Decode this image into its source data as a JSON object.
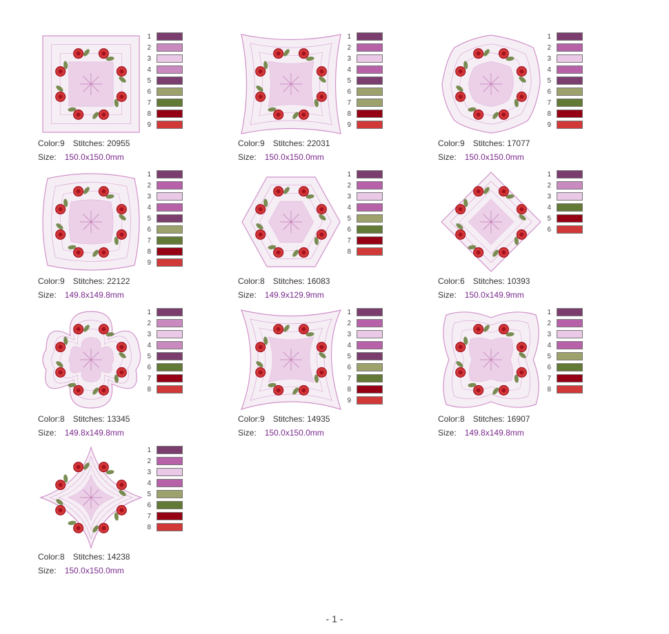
{
  "labels": {
    "color": "Color:",
    "stitches": "Stitches:",
    "size": "Size:"
  },
  "palette": {
    "plum": "#7a3d6e",
    "orchid": "#b762a8",
    "lightpink": "#e9c9e6",
    "sage": "#9da26c",
    "olive": "#627a35",
    "darkred": "#960014",
    "red": "#d13838",
    "mauve": "#d091c9"
  },
  "designs": [
    {
      "color_count": "9",
      "stitches": "20955",
      "size": "150.0x150.0mm",
      "shape": "square",
      "swatches": [
        "#7a3d6e",
        "#c98ac0",
        "#e9c9e6",
        "#c98ac0",
        "#7a3d6e",
        "#9da26c",
        "#627a35",
        "#960014",
        "#d13838"
      ]
    },
    {
      "color_count": "9",
      "stitches": "22031",
      "size": "150.0x150.0mm",
      "shape": "square-star",
      "swatches": [
        "#7a3d6e",
        "#b762a8",
        "#e9c9e6",
        "#b762a8",
        "#7a3d6e",
        "#9da26c",
        "#9da26c",
        "#960014",
        "#d13838"
      ]
    },
    {
      "color_count": "9",
      "stitches": "17077",
      "size": "150.0x150.0mm",
      "shape": "octagon",
      "swatches": [
        "#7a3d6e",
        "#b762a8",
        "#e9c9e6",
        "#b762a8",
        "#7a3d6e",
        "#9da26c",
        "#627a35",
        "#960014",
        "#d13838"
      ]
    },
    {
      "color_count": "9",
      "stitches": "22122",
      "size": "149.8x149.8mm",
      "shape": "rounded-square",
      "swatches": [
        "#7a3d6e",
        "#b762a8",
        "#e9c9e6",
        "#b762a8",
        "#7a3d6e",
        "#9da26c",
        "#627a35",
        "#960014",
        "#d13838"
      ]
    },
    {
      "color_count": "8",
      "stitches": "16083",
      "size": "149.9x129.9mm",
      "shape": "hexagon",
      "swatches": [
        "#7a3d6e",
        "#b762a8",
        "#e9c9e6",
        "#b762a8",
        "#9da26c",
        "#627a35",
        "#960014",
        "#d13838"
      ]
    },
    {
      "color_count": "6",
      "stitches": "10393",
      "size": "150.0x149.9mm",
      "shape": "diamond",
      "swatches": [
        "#7a3d6e",
        "#c98ac0",
        "#e9c9e6",
        "#627a35",
        "#960014",
        "#d13838"
      ]
    },
    {
      "color_count": "8",
      "stitches": "13345",
      "size": "149.8x149.8mm",
      "shape": "flower",
      "swatches": [
        "#7a3d6e",
        "#c98ac0",
        "#e9c9e6",
        "#c98ac0",
        "#7a3d6e",
        "#627a35",
        "#960014",
        "#d13838"
      ]
    },
    {
      "color_count": "9",
      "stitches": "14935",
      "size": "150.0x150.0mm",
      "shape": "pinwheel",
      "swatches": [
        "#7a3d6e",
        "#b762a8",
        "#e9c9e6",
        "#b762a8",
        "#7a3d6e",
        "#9da26c",
        "#627a35",
        "#960014",
        "#d13838"
      ]
    },
    {
      "color_count": "8",
      "stitches": "16907",
      "size": "149.8x149.8mm",
      "shape": "wavy-square",
      "swatches": [
        "#7a3d6e",
        "#b762a8",
        "#e9c9e6",
        "#b762a8",
        "#9da26c",
        "#627a35",
        "#960014",
        "#d13838"
      ]
    },
    {
      "color_count": "8",
      "stitches": "14238",
      "size": "150.0x150.0mm",
      "shape": "four-point-star",
      "swatches": [
        "#7a3d6e",
        "#b762a8",
        "#e9c9e6",
        "#b762a8",
        "#9da26c",
        "#627a35",
        "#960014",
        "#d13838"
      ]
    }
  ],
  "footer": {
    "page_label": "- 1 -"
  }
}
